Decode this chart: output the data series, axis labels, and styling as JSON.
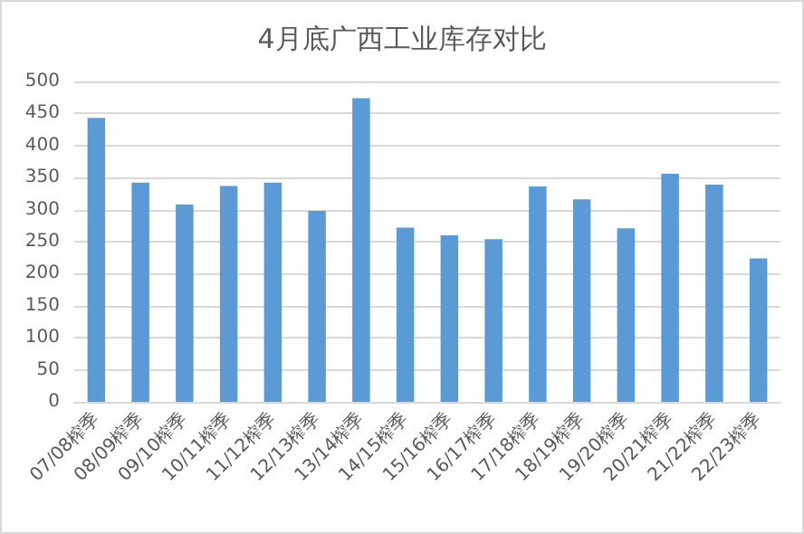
{
  "chart_data": {
    "type": "bar",
    "title": "4月底广西工业库存对比",
    "categories": [
      "07/08榨季",
      "08/09榨季",
      "09/10榨季",
      "10/11榨季",
      "11/12榨季",
      "12/13榨季",
      "13/14榨季",
      "14/15榨季",
      "15/16榨季",
      "16/17榨季",
      "17/18榨季",
      "18/19榨季",
      "19/20榨季",
      "20/21榨季",
      "21/22榨季",
      "22/23榨季"
    ],
    "values": [
      443,
      342,
      308,
      337,
      342,
      298,
      474,
      272,
      260,
      254,
      336,
      316,
      271,
      356,
      339,
      224
    ],
    "color": "#5b9bd5",
    "ylim": [
      0,
      500
    ],
    "yticks": [
      0,
      50,
      100,
      150,
      200,
      250,
      300,
      350,
      400,
      450,
      500
    ],
    "grid": "y"
  }
}
